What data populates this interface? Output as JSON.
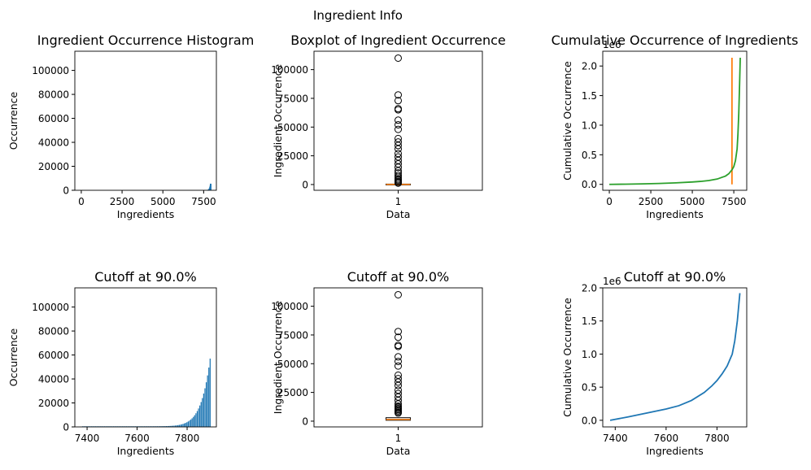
{
  "figure": {
    "suptitle": "Ingredient Info",
    "colors": {
      "blue": "#1f77b4",
      "orange": "#ff7f0e",
      "green": "#2ca02c",
      "median": "#ff7f0e"
    }
  },
  "chart_data": [
    {
      "type": "bar",
      "title": "Ingredient Occurrence Histogram",
      "xlabel": "Ingredients",
      "ylabel": "Occurrence",
      "xlim": [
        -395,
        8280
      ],
      "ylim": [
        0,
        116000
      ],
      "xticks": [
        0,
        2500,
        5000,
        7500
      ],
      "yticks": [
        0,
        20000,
        40000,
        60000,
        80000,
        100000
      ],
      "x": [
        7700,
        7720,
        7740,
        7760,
        7780,
        7800,
        7820,
        7840,
        7860,
        7880
      ],
      "values": [
        200,
        300,
        400,
        600,
        800,
        1200,
        1800,
        2600,
        3800,
        5500
      ]
    },
    {
      "type": "boxplot",
      "title": "Boxplot of Ingredient Occurrence",
      "xlabel": "Data",
      "ylabel": "Ingredient Occurrence",
      "xticks": [
        "1"
      ],
      "ylim": [
        -5000,
        116000
      ],
      "yticks": [
        0,
        25000,
        50000,
        75000,
        100000
      ],
      "median": 100,
      "q1": 10,
      "q3": 400,
      "fliers": [
        110000,
        78000,
        73000,
        66000,
        65000,
        56000,
        52000,
        48000,
        40000,
        37000,
        34000,
        31000,
        27000,
        24000,
        21000,
        18000,
        15000,
        12000,
        10000,
        8000,
        6500,
        5000,
        4000,
        3000,
        2000,
        1200
      ]
    },
    {
      "type": "line",
      "title": "Cumulative Occurrence of Ingredients",
      "xlabel": "Ingredients",
      "ylabel": "Cumulative Occurrence",
      "offset_text": "1e6",
      "xlim": [
        -395,
        8280
      ],
      "ylim": [
        -0.1,
        2.25
      ],
      "xticks": [
        0,
        2500,
        5000,
        7500
      ],
      "yticks": [
        0.0,
        0.5,
        1.0,
        1.5,
        2.0
      ],
      "series": [
        {
          "color": "orange",
          "x": [
            7390,
            7390
          ],
          "y": [
            0.0,
            2.14
          ]
        },
        {
          "color": "green",
          "x": [
            0,
            1000,
            2000,
            3000,
            4000,
            5000,
            5500,
            6000,
            6500,
            7000,
            7200,
            7400,
            7500,
            7600,
            7700,
            7750,
            7800,
            7850,
            7890
          ],
          "y": [
            0.0,
            0.003,
            0.008,
            0.015,
            0.025,
            0.04,
            0.05,
            0.065,
            0.09,
            0.14,
            0.18,
            0.25,
            0.3,
            0.4,
            0.6,
            0.85,
            1.2,
            1.7,
            2.14
          ]
        }
      ]
    },
    {
      "type": "bar",
      "title": "Cutoff at 90.0%",
      "xlabel": "Ingredients",
      "ylabel": "Occurrence",
      "xlim": [
        7351,
        7917
      ],
      "ylim": [
        0,
        116000
      ],
      "xticks": [
        7400,
        7600,
        7800
      ],
      "yticks": [
        0,
        20000,
        40000,
        60000,
        80000,
        100000
      ],
      "x_start": 7380,
      "x_end": 7890,
      "values_range": [
        500,
        57000
      ]
    },
    {
      "type": "boxplot",
      "title": "Cutoff at 90.0%",
      "xlabel": "Data",
      "ylabel": "Ingredient Occurrence",
      "xticks": [
        "1"
      ],
      "ylim": [
        -5000,
        116000
      ],
      "yticks": [
        0,
        25000,
        50000,
        75000,
        100000
      ],
      "median": 1500,
      "q1": 800,
      "q3": 3000,
      "fliers": [
        110000,
        78000,
        73000,
        66000,
        65000,
        56000,
        52000,
        48000,
        40000,
        37000,
        34000,
        31000,
        27000,
        24000,
        21000,
        18000,
        15000,
        13000,
        12000,
        11000,
        10000,
        9000,
        8000,
        7000
      ]
    },
    {
      "type": "line",
      "title": "Cutoff at 90.0%",
      "xlabel": "Ingredients",
      "ylabel": "Cumulative Occurrence",
      "offset_text": "1e6",
      "xlim": [
        7351,
        7917
      ],
      "ylim": [
        -0.1,
        2.0
      ],
      "xticks": [
        7400,
        7600,
        7800
      ],
      "yticks": [
        0.0,
        0.5,
        1.0,
        1.5,
        2.0
      ],
      "series": [
        {
          "color": "blue",
          "x": [
            7380,
            7450,
            7500,
            7550,
            7600,
            7650,
            7700,
            7750,
            7780,
            7800,
            7820,
            7840,
            7860,
            7870,
            7880,
            7890
          ],
          "y": [
            0.0,
            0.05,
            0.09,
            0.13,
            0.17,
            0.22,
            0.3,
            0.42,
            0.52,
            0.6,
            0.7,
            0.82,
            1.0,
            1.2,
            1.5,
            1.92
          ]
        }
      ]
    }
  ]
}
